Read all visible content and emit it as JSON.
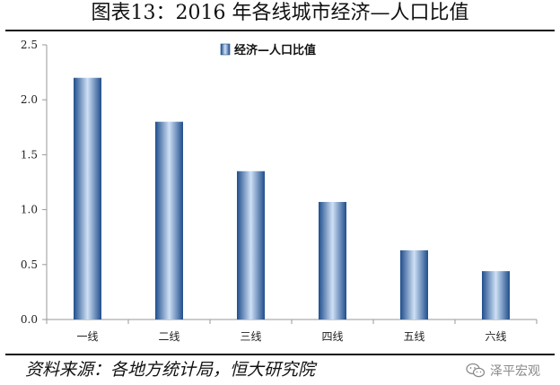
{
  "title": "图表13：2016 年各线城市经济—人口比值",
  "source": "资料来源：各地方统计局，恒大研究院",
  "watermark": {
    "text": "泽平宏观",
    "icon": "wechat-icon"
  },
  "colors": {
    "bar_edge": "#1f4e8c",
    "bar_center": "#cfe0f5",
    "axis": "#9a9a9a"
  },
  "chart_data": {
    "type": "bar",
    "categories": [
      "一线",
      "二线",
      "三线",
      "四线",
      "五线",
      "六线"
    ],
    "series": [
      {
        "name": "经济—人口比值",
        "values": [
          2.2,
          1.8,
          1.35,
          1.07,
          0.63,
          0.44
        ]
      }
    ],
    "yticks": [
      "0.0",
      "0.5",
      "1.0",
      "1.5",
      "2.0",
      "2.5"
    ],
    "ylim": [
      0,
      2.5
    ],
    "grid": false,
    "legend": "top-center"
  }
}
